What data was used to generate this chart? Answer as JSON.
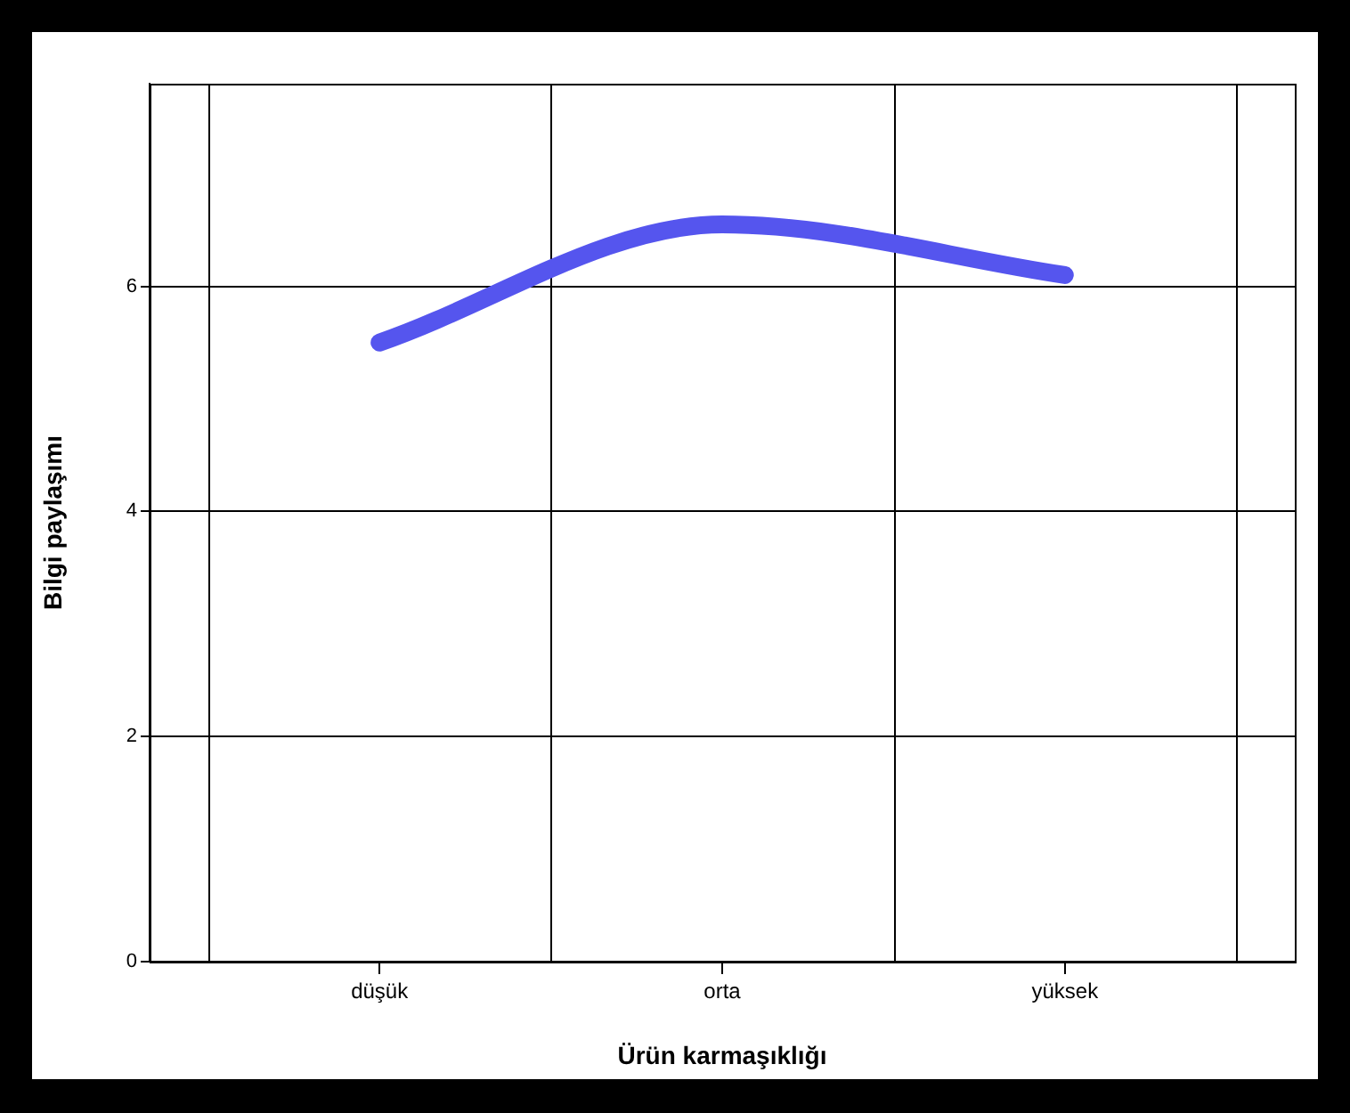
{
  "chart_data": {
    "type": "line",
    "xlabel": "Ürün karmaşıklığı",
    "ylabel": "Bilgi paylaşımı",
    "categories": [
      "düşük",
      "orta",
      "yüksek"
    ],
    "series": [
      {
        "color": "#5555ee",
        "values": [
          5.5,
          6.55,
          6.1
        ]
      }
    ],
    "ylim": [
      0,
      7.8
    ],
    "yticks": [
      0,
      2,
      4,
      6
    ],
    "grid": true
  }
}
